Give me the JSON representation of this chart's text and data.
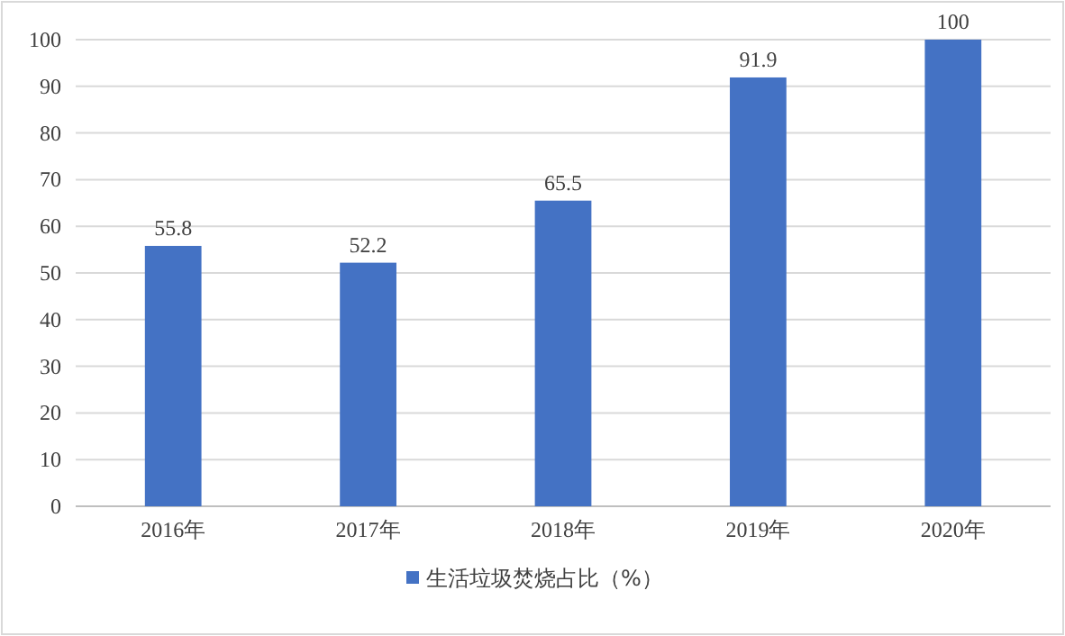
{
  "chart_data": {
    "type": "bar",
    "categories": [
      "2016年",
      "2017年",
      "2018年",
      "2019年",
      "2020年"
    ],
    "series": [
      {
        "name": "生活垃圾焚烧占比（%）",
        "color": "#4472c4",
        "values": [
          55.8,
          52.2,
          65.5,
          91.9,
          100
        ]
      }
    ],
    "ylim": [
      0,
      100
    ],
    "yticks": [
      0,
      10,
      20,
      30,
      40,
      50,
      60,
      70,
      80,
      90,
      100
    ],
    "grid": "y",
    "legend": "bottom",
    "data_labels": true
  }
}
